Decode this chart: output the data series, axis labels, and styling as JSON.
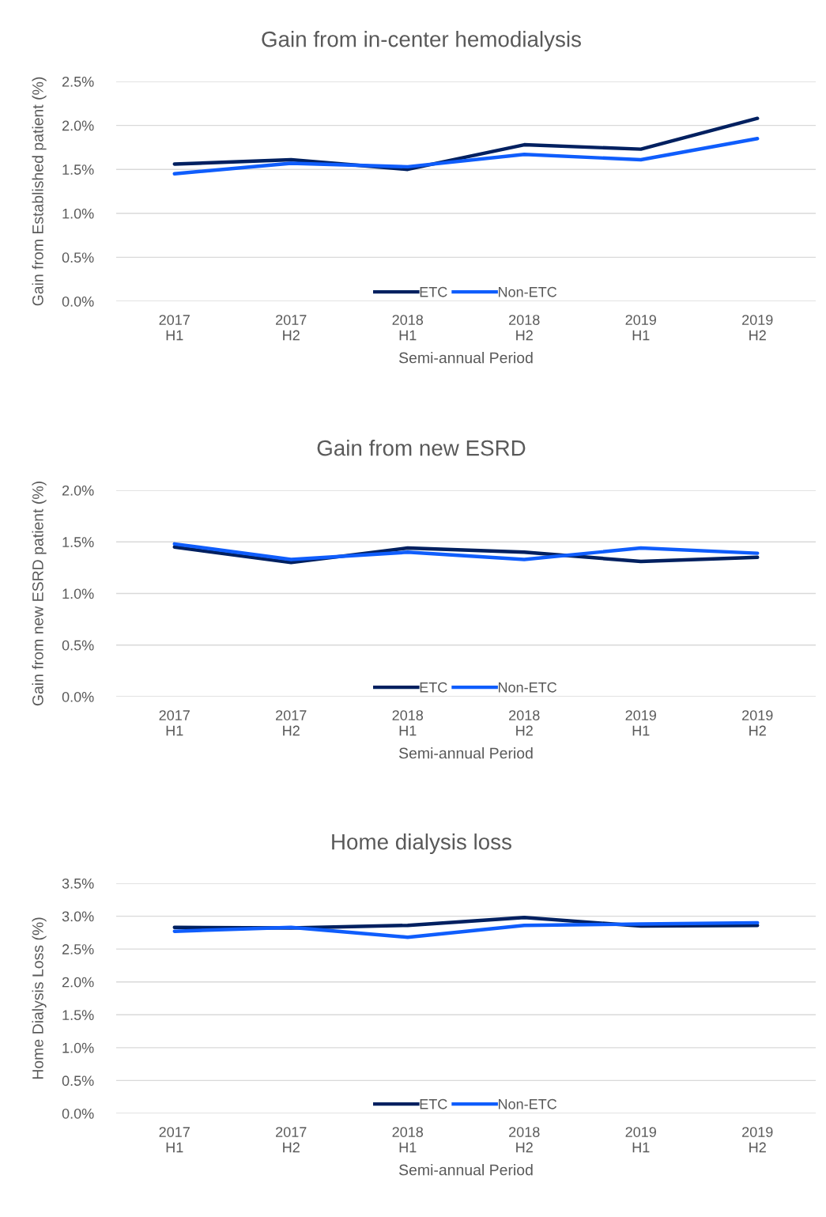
{
  "chart_data": [
    {
      "type": "line",
      "title": "Gain from in-center hemodialysis",
      "xlabel": "Semi-annual Period",
      "ylabel": "Gain from Established patient (%)",
      "categories": [
        "2017\nH1",
        "2017\nH2",
        "2018\nH1",
        "2018\nH2",
        "2019\nH1",
        "2019\nH2"
      ],
      "series": [
        {
          "name": "ETC",
          "color": "#002060",
          "values": [
            1.56,
            1.61,
            1.5,
            1.78,
            1.73,
            2.08
          ]
        },
        {
          "name": "Non-ETC",
          "color": "#0f5dfc",
          "values": [
            1.45,
            1.57,
            1.53,
            1.67,
            1.61,
            1.85
          ]
        }
      ],
      "ylim": [
        0,
        2.5
      ],
      "yticks": [
        {
          "value": 0,
          "label": "0.0%"
        },
        {
          "value": 0.5,
          "label": "0.5%"
        },
        {
          "value": 1.0,
          "label": "1.0%"
        },
        {
          "value": 1.5,
          "label": "1.5%"
        },
        {
          "value": 2.0,
          "label": "2.0%"
        },
        {
          "value": 2.5,
          "label": "2.5%"
        }
      ],
      "grid": "y",
      "legend": "bottom",
      "marker": "none",
      "line_style": "solid"
    },
    {
      "type": "line",
      "title": "Gain from new ESRD",
      "xlabel": "Semi-annual Period",
      "ylabel": "Gain from new ESRD patient (%)",
      "categories": [
        "2017\nH1",
        "2017\nH2",
        "2018\nH1",
        "2018\nH2",
        "2019\nH1",
        "2019\nH2"
      ],
      "series": [
        {
          "name": "ETC",
          "color": "#002060",
          "values": [
            1.45,
            1.3,
            1.44,
            1.4,
            1.31,
            1.35
          ]
        },
        {
          "name": "Non-ETC",
          "color": "#0f5dfc",
          "values": [
            1.48,
            1.33,
            1.4,
            1.33,
            1.44,
            1.39
          ]
        }
      ],
      "ylim": [
        0,
        2.0
      ],
      "yticks": [
        {
          "value": 0,
          "label": "0.0%"
        },
        {
          "value": 0.5,
          "label": "0.5%"
        },
        {
          "value": 1.0,
          "label": "1.0%"
        },
        {
          "value": 1.5,
          "label": "1.5%"
        },
        {
          "value": 2.0,
          "label": "2.0%"
        }
      ],
      "grid": "y",
      "legend": "bottom",
      "marker": "none",
      "line_style": "solid"
    },
    {
      "type": "line",
      "title": "Home dialysis loss",
      "xlabel": "Semi-annual Period",
      "ylabel": "Home Dialysis Loss (%)",
      "categories": [
        "2017\nH1",
        "2017\nH2",
        "2018\nH1",
        "2018\nH2",
        "2019\nH1",
        "2019\nH2"
      ],
      "series": [
        {
          "name": "ETC",
          "color": "#002060",
          "values": [
            2.83,
            2.82,
            2.86,
            2.98,
            2.85,
            2.86
          ]
        },
        {
          "name": "Non-ETC",
          "color": "#0f5dfc",
          "values": [
            2.77,
            2.83,
            2.68,
            2.86,
            2.88,
            2.9
          ]
        }
      ],
      "ylim": [
        0,
        3.5
      ],
      "yticks": [
        {
          "value": 0,
          "label": "0.0%"
        },
        {
          "value": 0.5,
          "label": "0.5%"
        },
        {
          "value": 1.0,
          "label": "1.0%"
        },
        {
          "value": 1.5,
          "label": "1.5%"
        },
        {
          "value": 2.0,
          "label": "2.0%"
        },
        {
          "value": 2.5,
          "label": "2.5%"
        },
        {
          "value": 3.0,
          "label": "3.0%"
        },
        {
          "value": 3.5,
          "label": "3.5%"
        }
      ],
      "grid": "y",
      "legend": "bottom",
      "marker": "none",
      "line_style": "solid"
    }
  ]
}
